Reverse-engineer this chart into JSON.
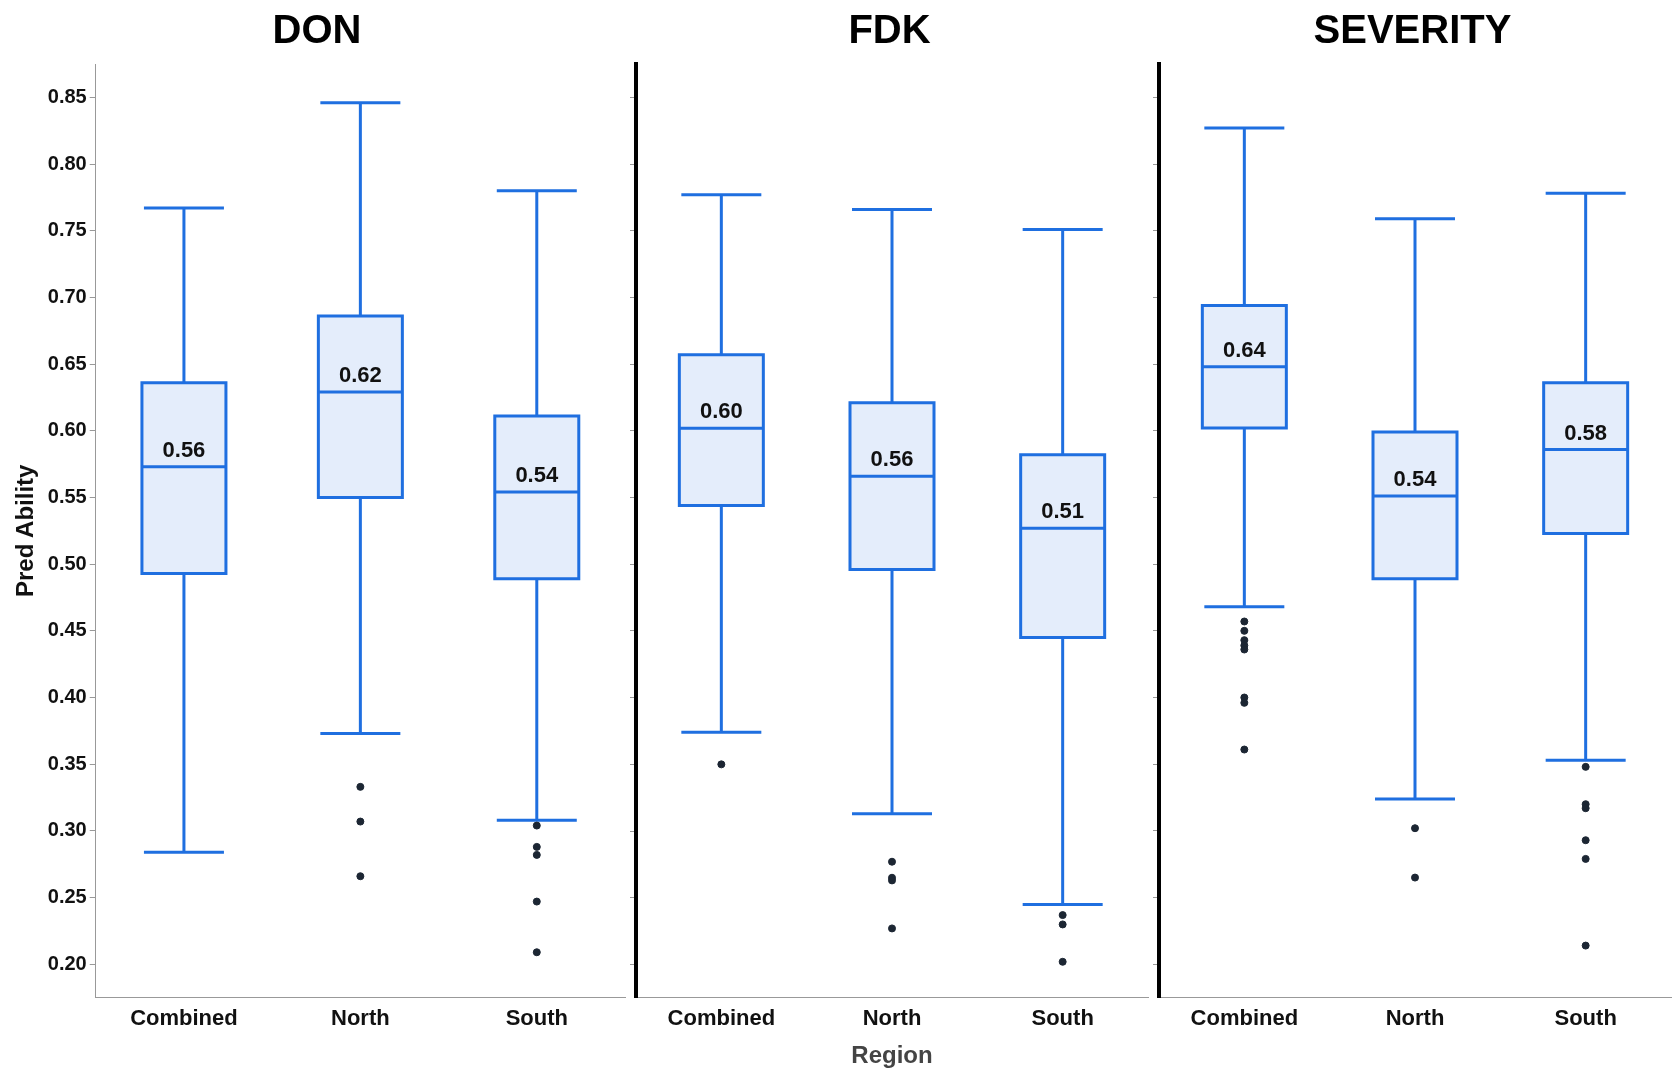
{
  "chart_data": [
    {
      "type": "box",
      "title": "DON",
      "ylabel": "Pred Ability",
      "categories": [
        "Combined",
        "North",
        "South"
      ],
      "ylim": [
        0.175,
        0.875
      ],
      "yticks": [
        {
          "value": 0.2,
          "label": "0.20"
        },
        0.25,
        {
          "value": 0.3,
          "label": "0.30"
        },
        0.35,
        {
          "value": 0.4,
          "label": "0.40"
        },
        0.45,
        {
          "value": 0.5,
          "label": "0.50"
        },
        0.55,
        {
          "value": 0.6,
          "label": "0.60"
        },
        0.65,
        {
          "value": 0.7,
          "label": "0.70"
        },
        0.75,
        {
          "value": 0.8,
          "label": "0.80"
        },
        0.85
      ],
      "grid": false,
      "legend": false,
      "marker": "circle",
      "series": [
        {
          "color": "#1f6fe0",
          "boxes": [
            {
              "low": 0.284,
              "q1": 0.493,
              "median": 0.573,
              "q3": 0.636,
              "high": 0.767
            },
            {
              "low": 0.373,
              "q1": 0.55,
              "median": 0.629,
              "q3": 0.686,
              "high": 0.846,
              "outliers": [
                0.333,
                0.307,
                0.266
              ]
            },
            {
              "low": 0.308,
              "q1": 0.489,
              "median": 0.554,
              "q3": 0.611,
              "high": 0.78,
              "outliers": [
                0.304,
                0.288,
                0.282,
                0.247,
                0.209
              ]
            }
          ]
        }
      ],
      "annotations": [
        "0.56",
        "0.62",
        "0.54"
      ]
    },
    {
      "type": "box",
      "title": "FDK",
      "xlabel": "Region",
      "categories": [
        "Combined",
        "North",
        "South"
      ],
      "ylim": [
        0.175,
        0.875
      ],
      "yticks": [
        0.2,
        0.25,
        0.3,
        0.35,
        0.4,
        0.45,
        0.5,
        0.55,
        0.6,
        0.65,
        0.7,
        0.75,
        0.8,
        0.85
      ],
      "grid": false,
      "legend": false,
      "marker": "circle",
      "tick_labels": "x",
      "series": [
        {
          "color": "#1f6fe0",
          "boxes": [
            {
              "low": 0.374,
              "q1": 0.544,
              "median": 0.602,
              "q3": 0.657,
              "high": 0.777,
              "outliers": [
                0.35
              ]
            },
            {
              "low": 0.313,
              "q1": 0.496,
              "median": 0.566,
              "q3": 0.621,
              "high": 0.766,
              "outliers": [
                0.277,
                0.265,
                0.263,
                0.227
              ]
            },
            {
              "low": 0.245,
              "q1": 0.445,
              "median": 0.527,
              "q3": 0.582,
              "high": 0.751,
              "outliers": [
                0.237,
                0.23,
                0.202
              ]
            }
          ]
        }
      ],
      "annotations": [
        "0.60",
        "0.56",
        "0.51"
      ]
    },
    {
      "type": "box",
      "title": "SEVERITY",
      "categories": [
        "Combined",
        "North",
        "South"
      ],
      "ylim": [
        0.175,
        0.875
      ],
      "yticks": [
        0.2,
        0.25,
        0.3,
        0.35,
        0.4,
        0.45,
        0.5,
        0.55,
        0.6,
        0.65,
        0.7,
        0.75,
        0.8,
        0.85
      ],
      "grid": false,
      "legend": false,
      "marker": "circle",
      "tick_labels": "x",
      "series": [
        {
          "color": "#1f6fe0",
          "boxes": [
            {
              "low": 0.468,
              "q1": 0.602,
              "median": 0.648,
              "q3": 0.694,
              "high": 0.827,
              "outliers": [
                0.457,
                0.45,
                0.443,
                0.439,
                0.436,
                0.4,
                0.396,
                0.361
              ]
            },
            {
              "low": 0.324,
              "q1": 0.489,
              "median": 0.551,
              "q3": 0.599,
              "high": 0.759,
              "outliers": [
                0.302,
                0.265
              ]
            },
            {
              "low": 0.353,
              "q1": 0.523,
              "median": 0.586,
              "q3": 0.636,
              "high": 0.778,
              "outliers": [
                0.348,
                0.32,
                0.317,
                0.293,
                0.279,
                0.214
              ]
            }
          ]
        }
      ],
      "annotations": [
        "0.64",
        "0.54",
        "0.58"
      ]
    }
  ]
}
